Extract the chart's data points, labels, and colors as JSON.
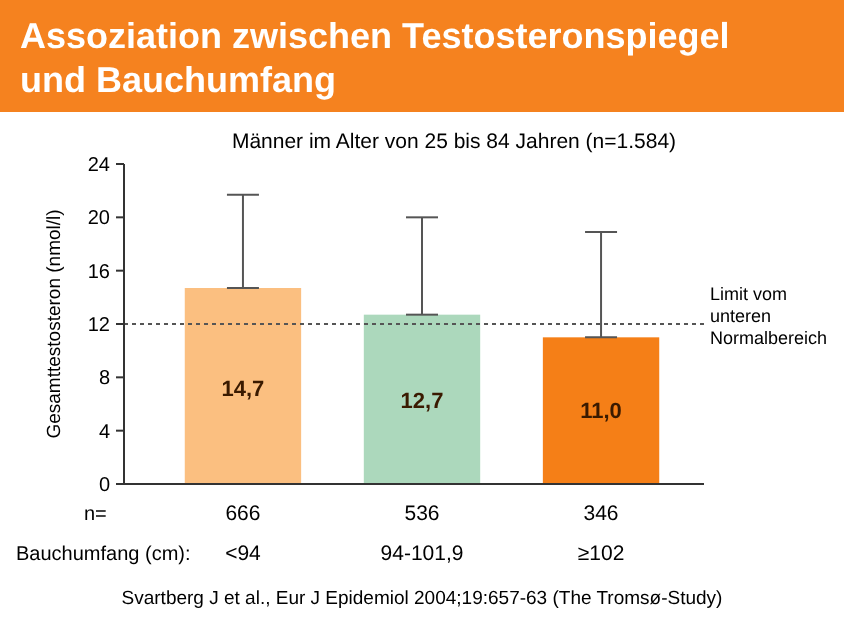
{
  "chart_data": {
    "type": "bar",
    "title": "Assoziation zwischen Testosteronspiegel und Bauchumfang",
    "subtitle": "Männer im Alter von 25 bis 84 Jahren (n=1.584)",
    "ylabel": "Gesamttestosteron (nmol/l)",
    "xlabel": "Bauchumfang (cm):",
    "categories": [
      "<94",
      "94-101,9",
      "≥102"
    ],
    "values": [
      14.7,
      12.7,
      11.0
    ],
    "colors": [
      "#fbbf80",
      "#acd8bc",
      "#f57f17"
    ],
    "value_labels": [
      "14,7",
      "12,7",
      "11,0"
    ],
    "errors": [
      [
        14.7,
        21.7
      ],
      [
        12.7,
        20.0
      ],
      [
        11.0,
        18.9
      ]
    ],
    "ylim": [
      0,
      24
    ],
    "yticks": [
      0,
      4,
      8,
      12,
      16,
      20,
      24
    ],
    "ref_lines": [
      {
        "axis": "y",
        "value": 12,
        "label": "Limit vom unteren Normalbereich",
        "line_style": "dotted",
        "color": "#555555"
      }
    ],
    "annotations": [
      "n=",
      "666",
      "536",
      "346",
      "Svartberg J et al., Eur J Epidemiol 2004;19:657-63 (The Tromsø-Study)"
    ],
    "grid": false
  }
}
